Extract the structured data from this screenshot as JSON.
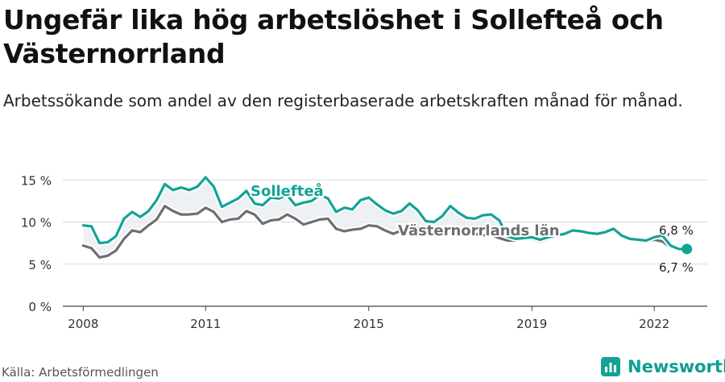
{
  "title": "Ungefär lika hög arbetslöshet i Sollefteå och Västernorrland",
  "subtitle": "Arbetssökande som andel av den registerbaserade arbetskraften månad för månad.",
  "source": "Källa: Arbetsförmedlingen",
  "brand": "Newsworthy",
  "colors": {
    "solleftea": "#12a396",
    "vasternorrland": "#6f6f73",
    "band": "#e9eef0",
    "grid": "#d9d9d9"
  },
  "chart_data": {
    "type": "line",
    "y_ticks": [
      "0 %",
      "5 %",
      "10 %",
      "15 %"
    ],
    "y_tick_values": [
      0,
      5,
      10,
      15
    ],
    "ylim": [
      0,
      16
    ],
    "x_ticks": [
      "2008",
      "2011",
      "2015",
      "2019",
      "2022"
    ],
    "x_tick_values": [
      2008,
      2011,
      2015,
      2019,
      2022
    ],
    "xlim": [
      2007.5,
      2023.3
    ],
    "end_labels": {
      "solleftea": "6,8 %",
      "vasternorrland": "6,7 %"
    },
    "series": [
      {
        "name": "Sollefteå",
        "x": [
          2008.0,
          2008.2,
          2008.4,
          2008.6,
          2008.8,
          2009.0,
          2009.2,
          2009.4,
          2009.6,
          2009.8,
          2010.0,
          2010.2,
          2010.4,
          2010.6,
          2010.8,
          2011.0,
          2011.2,
          2011.4,
          2011.6,
          2011.8,
          2012.0,
          2012.2,
          2012.4,
          2012.6,
          2012.8,
          2013.0,
          2013.2,
          2013.4,
          2013.6,
          2013.8,
          2014.0,
          2014.2,
          2014.4,
          2014.6,
          2014.8,
          2015.0,
          2015.2,
          2015.4,
          2015.6,
          2015.8,
          2016.0,
          2016.2,
          2016.4,
          2016.6,
          2016.8,
          2017.0,
          2017.2,
          2017.4,
          2017.6,
          2017.8,
          2018.0,
          2018.2,
          2018.4,
          2018.6,
          2018.8,
          2019.0,
          2019.2,
          2019.4,
          2019.6,
          2019.8,
          2020.0,
          2020.2,
          2020.4,
          2020.6,
          2020.8,
          2021.0,
          2021.2,
          2021.4,
          2021.6,
          2021.8,
          2022.0,
          2022.2,
          2022.4,
          2022.6,
          2022.8
        ],
        "values": [
          9.6,
          9.5,
          7.5,
          7.6,
          8.3,
          10.4,
          11.2,
          10.6,
          11.3,
          12.6,
          14.5,
          13.8,
          14.1,
          13.8,
          14.2,
          15.3,
          14.2,
          11.8,
          12.3,
          12.8,
          13.7,
          12.2,
          12.0,
          12.9,
          12.8,
          13.2,
          12.0,
          12.3,
          12.5,
          13.2,
          12.8,
          11.2,
          11.7,
          11.5,
          12.6,
          12.9,
          12.1,
          11.4,
          11.0,
          11.3,
          12.2,
          11.4,
          10.1,
          10.0,
          10.7,
          11.9,
          11.1,
          10.5,
          10.4,
          10.8,
          10.9,
          10.2,
          8.3,
          8.0,
          8.1,
          8.2,
          7.9,
          8.2,
          8.4,
          8.6,
          9.0,
          8.9,
          8.7,
          8.6,
          8.8,
          9.2,
          8.4,
          8.0,
          7.9,
          7.8,
          8.2,
          8.4,
          7.2,
          6.8,
          6.8
        ]
      },
      {
        "name": "Västernorrlands län",
        "x": [
          2008.0,
          2008.2,
          2008.4,
          2008.6,
          2008.8,
          2009.0,
          2009.2,
          2009.4,
          2009.6,
          2009.8,
          2010.0,
          2010.2,
          2010.4,
          2010.6,
          2010.8,
          2011.0,
          2011.2,
          2011.4,
          2011.6,
          2011.8,
          2012.0,
          2012.2,
          2012.4,
          2012.6,
          2012.8,
          2013.0,
          2013.2,
          2013.4,
          2013.6,
          2013.8,
          2014.0,
          2014.2,
          2014.4,
          2014.6,
          2014.8,
          2015.0,
          2015.2,
          2015.4,
          2015.6,
          2015.8,
          2016.0,
          2016.2,
          2016.4,
          2016.6,
          2016.8,
          2017.0,
          2017.2,
          2017.4,
          2017.6,
          2017.8,
          2018.0,
          2018.2,
          2018.4,
          2018.6,
          2018.8,
          2019.0,
          2019.2,
          2019.4,
          2019.6,
          2019.8,
          2020.0,
          2020.2,
          2020.4,
          2020.6,
          2020.8,
          2021.0,
          2021.2,
          2021.4,
          2021.6,
          2021.8,
          2022.0,
          2022.2,
          2022.4,
          2022.6,
          2022.8
        ],
        "values": [
          7.2,
          6.9,
          5.8,
          6.0,
          6.6,
          8.0,
          9.0,
          8.8,
          9.6,
          10.3,
          11.9,
          11.3,
          10.9,
          10.9,
          11.0,
          11.7,
          11.2,
          10.0,
          10.3,
          10.4,
          11.3,
          10.9,
          9.8,
          10.2,
          10.3,
          10.9,
          10.4,
          9.7,
          10.0,
          10.3,
          10.4,
          9.2,
          8.9,
          9.1,
          9.2,
          9.6,
          9.5,
          9.0,
          8.6,
          9.0,
          9.4,
          9.3,
          8.9,
          8.7,
          9.0,
          9.4,
          9.2,
          8.9,
          8.6,
          8.4,
          8.5,
          8.1,
          7.8,
          7.8,
          8.0,
          8.0,
          7.7,
          8.0,
          8.3,
          8.6,
          9.2,
          9.0,
          8.7,
          8.6,
          8.7,
          9.0,
          8.4,
          7.9,
          7.8,
          7.7,
          7.9,
          7.7,
          7.0,
          6.8,
          6.7
        ]
      }
    ]
  }
}
